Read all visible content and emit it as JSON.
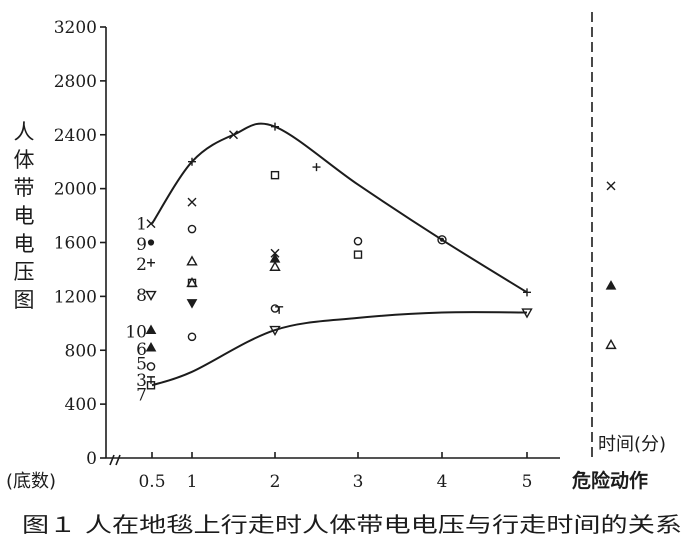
{
  "chart_data": {
    "type": "scatter",
    "title": "",
    "caption": "图１  人在地毯上行走时人体带电电压与行走时间的关系",
    "ylabel": "人体带电电压图",
    "xlabel": "时间(分)",
    "x_prefix_label": "(底数)",
    "danger_label": "危险动作",
    "ylim": [
      0,
      3200
    ],
    "yticks": [
      "0",
      "400",
      "800",
      "1200",
      "1600",
      "2000",
      "2400",
      "2800",
      "3200"
    ],
    "xticks": [
      {
        "x": 0.5,
        "label": "0.5"
      },
      {
        "x": 1,
        "label": "1"
      },
      {
        "x": 2,
        "label": "2"
      },
      {
        "x": 3,
        "label": "3"
      },
      {
        "x": 4,
        "label": "4"
      },
      {
        "x": 5,
        "label": "5"
      }
    ],
    "sample_labels": [
      {
        "id": "1",
        "y": 1740
      },
      {
        "id": "9",
        "y": 1590
      },
      {
        "id": "2",
        "y": 1440
      },
      {
        "id": "8",
        "y": 1210
      },
      {
        "id": "10",
        "y": 940
      },
      {
        "id": "6",
        "y": 810
      },
      {
        "id": "5",
        "y": 700
      },
      {
        "id": "3",
        "y": 580
      },
      {
        "id": "7",
        "y": 470
      }
    ],
    "upper_envelope": [
      [
        0.5,
        1740
      ],
      [
        1,
        2200
      ],
      [
        1.5,
        2400
      ],
      [
        2,
        2460
      ],
      [
        3,
        2030
      ],
      [
        4,
        1620
      ],
      [
        5,
        1230
      ]
    ],
    "lower_envelope": [
      [
        0.5,
        540
      ],
      [
        1,
        640
      ],
      [
        2,
        950
      ],
      [
        3,
        1040
      ],
      [
        4,
        1080
      ],
      [
        5,
        1080
      ]
    ],
    "points": [
      {
        "x": 0.5,
        "y": 1740,
        "m": "x"
      },
      {
        "x": 0.5,
        "y": 1600,
        "m": "dot"
      },
      {
        "x": 0.5,
        "y": 1450,
        "m": "plus"
      },
      {
        "x": 0.5,
        "y": 1210,
        "m": "tri_down"
      },
      {
        "x": 0.5,
        "y": 950,
        "m": "tri_f"
      },
      {
        "x": 0.5,
        "y": 820,
        "m": "tri_f"
      },
      {
        "x": 0.5,
        "y": 680,
        "m": "circle"
      },
      {
        "x": 0.5,
        "y": 580,
        "m": "T"
      },
      {
        "x": 0.5,
        "y": 540,
        "m": "square"
      },
      {
        "x": 1,
        "y": 2200,
        "m": "plus"
      },
      {
        "x": 1,
        "y": 1900,
        "m": "x"
      },
      {
        "x": 1,
        "y": 1700,
        "m": "circle"
      },
      {
        "x": 1,
        "y": 1460,
        "m": "tri"
      },
      {
        "x": 1,
        "y": 1300,
        "m": "square"
      },
      {
        "x": 1,
        "y": 1300,
        "m": "tri"
      },
      {
        "x": 1,
        "y": 1150,
        "m": "tri_fd"
      },
      {
        "x": 1,
        "y": 900,
        "m": "circle"
      },
      {
        "x": 1.5,
        "y": 2400,
        "m": "x"
      },
      {
        "x": 2,
        "y": 2460,
        "m": "plus"
      },
      {
        "x": 2,
        "y": 2100,
        "m": "square"
      },
      {
        "x": 2,
        "y": 1520,
        "m": "x"
      },
      {
        "x": 2,
        "y": 1480,
        "m": "tri_f"
      },
      {
        "x": 2,
        "y": 1420,
        "m": "tri"
      },
      {
        "x": 2,
        "y": 1110,
        "m": "circle"
      },
      {
        "x": 2.05,
        "y": 1100,
        "m": "T"
      },
      {
        "x": 2,
        "y": 950,
        "m": "tri_down"
      },
      {
        "x": 2.5,
        "y": 2160,
        "m": "plus"
      },
      {
        "x": 3,
        "y": 1610,
        "m": "circle"
      },
      {
        "x": 3,
        "y": 1510,
        "m": "square"
      },
      {
        "x": 4,
        "y": 1620,
        "m": "circle_dot"
      },
      {
        "x": 5,
        "y": 1230,
        "m": "plus"
      },
      {
        "x": 5,
        "y": 1080,
        "m": "tri_down"
      }
    ],
    "danger_points": [
      {
        "y": 2020,
        "m": "x"
      },
      {
        "y": 1280,
        "m": "tri_f"
      },
      {
        "y": 840,
        "m": "tri"
      }
    ]
  }
}
